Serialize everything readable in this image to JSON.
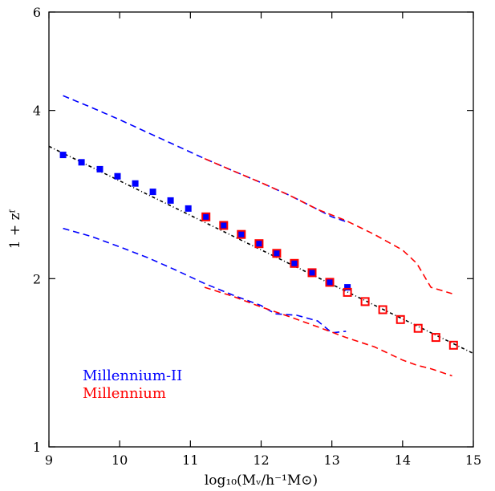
{
  "chart_data": {
    "type": "line",
    "title": "",
    "xlabel": "log₁₀(Mᵥ/h⁻¹M⊙)",
    "ylabel": "1 + zᶠ",
    "xlim": [
      9,
      15
    ],
    "ylim": [
      1,
      6
    ],
    "yscale": "log",
    "x_ticks": [
      9,
      10,
      11,
      12,
      13,
      14,
      15
    ],
    "x_tick_labels": [
      "9",
      "10",
      "11",
      "12",
      "13",
      "14",
      "15"
    ],
    "y_ticks": [
      1,
      2,
      4,
      6
    ],
    "y_tick_labels": [
      "1",
      "2",
      "4",
      "6"
    ],
    "grid": false,
    "legend_position": "bottom-left",
    "series": [
      {
        "name": "Millennium-II",
        "color": "#0000ff",
        "marker": "filled-square",
        "x": [
          9.2,
          9.46,
          9.72,
          9.97,
          10.22,
          10.47,
          10.72,
          10.97,
          11.22,
          11.47,
          11.72,
          11.97,
          12.22,
          12.47,
          12.72,
          12.97,
          13.22
        ],
        "y": [
          3.33,
          3.23,
          3.14,
          3.05,
          2.96,
          2.86,
          2.76,
          2.67,
          2.58,
          2.49,
          2.4,
          2.31,
          2.22,
          2.13,
          2.05,
          1.97,
          1.93
        ]
      },
      {
        "name": "Millennium",
        "color": "#ff0000",
        "marker": "open-square",
        "x": [
          11.22,
          11.47,
          11.72,
          11.97,
          12.22,
          12.47,
          12.72,
          12.97,
          13.22,
          13.47,
          13.72,
          13.97,
          14.22,
          14.47,
          14.72
        ],
        "y": [
          2.58,
          2.49,
          2.4,
          2.31,
          2.22,
          2.13,
          2.05,
          1.97,
          1.89,
          1.82,
          1.76,
          1.69,
          1.63,
          1.57,
          1.52
        ]
      }
    ],
    "fit_line": {
      "color": "#000000",
      "style": "dash-dot",
      "x": [
        9,
        15
      ],
      "y": [
        3.45,
        1.47
      ]
    },
    "scatter_bands": [
      {
        "series": "Millennium-II",
        "color": "#0000ff",
        "upper": {
          "x": [
            9.2,
            9.6,
            10.0,
            10.4,
            10.8,
            11.2,
            11.6,
            12.0,
            12.4,
            12.8,
            13.0,
            13.2
          ],
          "y": [
            4.25,
            4.05,
            3.85,
            3.65,
            3.46,
            3.28,
            3.12,
            2.97,
            2.82,
            2.66,
            2.58,
            2.53
          ]
        },
        "lower": {
          "x": [
            9.2,
            9.6,
            10.0,
            10.4,
            10.8,
            11.2,
            11.6,
            12.0,
            12.2,
            12.5,
            12.8,
            13.0,
            13.2
          ],
          "y": [
            2.46,
            2.38,
            2.28,
            2.18,
            2.07,
            1.96,
            1.87,
            1.79,
            1.73,
            1.72,
            1.68,
            1.6,
            1.61
          ]
        }
      },
      {
        "series": "Millennium",
        "color": "#ff0000",
        "upper": {
          "x": [
            11.2,
            11.6,
            12.0,
            12.4,
            12.8,
            13.2,
            13.6,
            14.0,
            14.2,
            14.4,
            14.7
          ],
          "y": [
            3.28,
            3.12,
            2.97,
            2.82,
            2.66,
            2.54,
            2.4,
            2.25,
            2.13,
            1.93,
            1.88
          ]
        },
        "lower": {
          "x": [
            11.2,
            11.6,
            12.0,
            12.4,
            12.8,
            13.2,
            13.6,
            13.8,
            14.0,
            14.2,
            14.4,
            14.7
          ],
          "y": [
            1.93,
            1.86,
            1.78,
            1.71,
            1.64,
            1.57,
            1.51,
            1.47,
            1.43,
            1.4,
            1.38,
            1.34
          ]
        }
      }
    ]
  }
}
